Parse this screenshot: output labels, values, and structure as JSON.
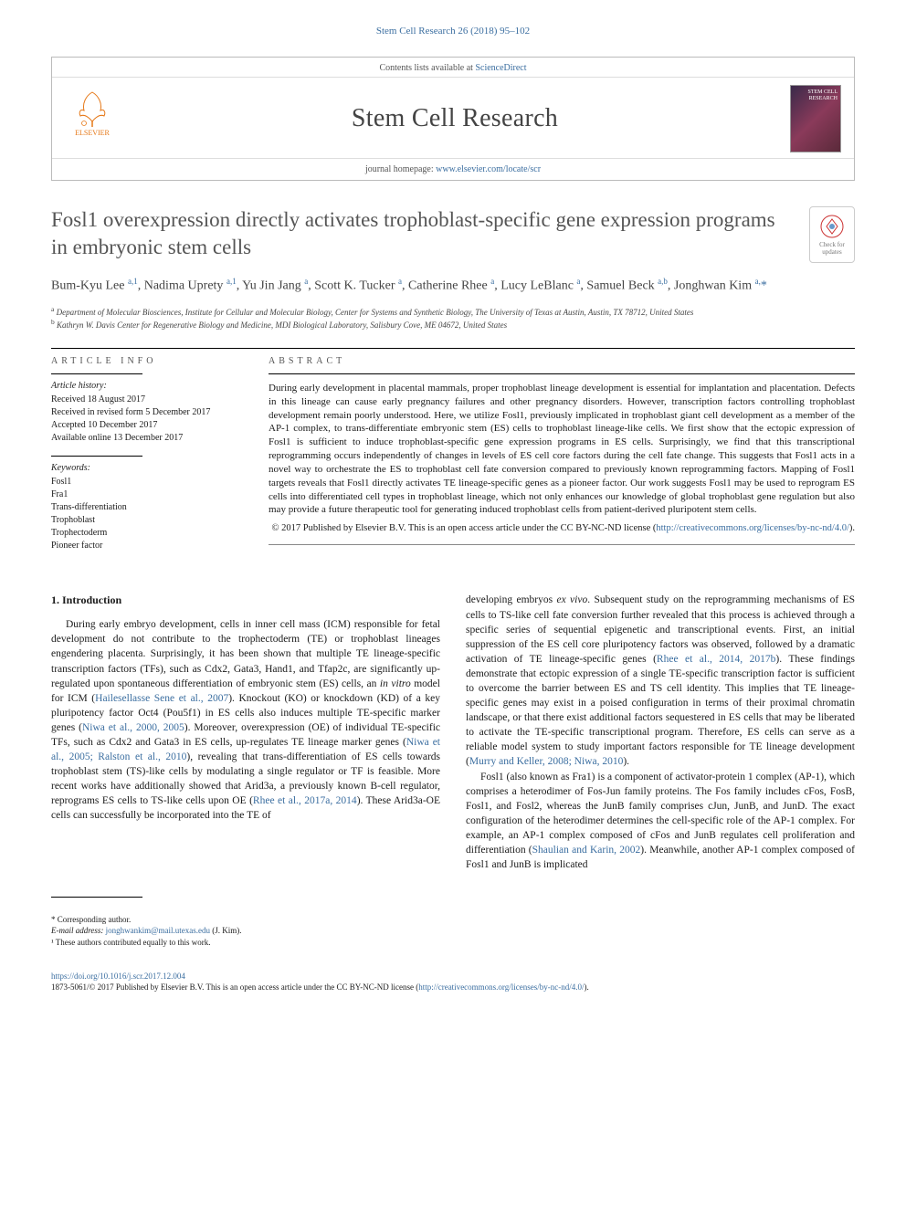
{
  "running_head": "Stem Cell Research 26 (2018) 95–102",
  "masthead": {
    "contents_line_pre": "Contents lists available at ",
    "contents_link": "ScienceDirect",
    "journal_title": "Stem Cell Research",
    "cover_text": "STEM\nCELL\nRESEARCH",
    "homepage_pre": "journal homepage: ",
    "homepage_url": "www.elsevier.com/locate/scr",
    "elsevier": "ELSEVIER"
  },
  "article": {
    "title": "Fosl1 overexpression directly activates trophoblast-specific gene expression programs in embryonic stem cells",
    "updates_label": "Check for updates"
  },
  "authors_html": "Bum-Kyu Lee <sup><a>a</a>,1</sup>, Nadima Uprety <sup><a>a</a>,1</sup>, Yu Jin Jang <sup><a>a</a></sup>, Scott K. Tucker <sup><a>a</a></sup>, Catherine Rhee <sup><a>a</a></sup>, Lucy LeBlanc <sup><a>a</a></sup>, Samuel Beck <sup><a>a</a>,<a>b</a></sup>, Jonghwan Kim <sup><a>a</a>,</sup><span class='star'>*</span>",
  "affiliations": [
    {
      "sup": "a",
      "text": "Department of Molecular Biosciences, Institute for Cellular and Molecular Biology, Center for Systems and Synthetic Biology, The University of Texas at Austin, Austin, TX 78712, United States"
    },
    {
      "sup": "b",
      "text": "Kathryn W. Davis Center for Regenerative Biology and Medicine, MDI Biological Laboratory, Salisbury Cove, ME 04672, United States"
    }
  ],
  "info": {
    "heading": "ARTICLE INFO",
    "history_label": "Article history:",
    "history": [
      "Received 18 August 2017",
      "Received in revised form 5 December 2017",
      "Accepted 10 December 2017",
      "Available online 13 December 2017"
    ],
    "keywords_label": "Keywords:",
    "keywords": [
      "Fosl1",
      "Fra1",
      "Trans-differentiation",
      "Trophoblast",
      "Trophectoderm",
      "Pioneer factor"
    ]
  },
  "abstract": {
    "heading": "ABSTRACT",
    "text": "During early development in placental mammals, proper trophoblast lineage development is essential for implantation and placentation. Defects in this lineage can cause early pregnancy failures and other pregnancy disorders. However, transcription factors controlling trophoblast development remain poorly understood. Here, we utilize Fosl1, previously implicated in trophoblast giant cell development as a member of the AP-1 complex, to trans-differentiate embryonic stem (ES) cells to trophoblast lineage-like cells. We first show that the ectopic expression of Fosl1 is sufficient to induce trophoblast-specific gene expression programs in ES cells. Surprisingly, we find that this transcriptional reprogramming occurs independently of changes in levels of ES cell core factors during the cell fate change. This suggests that Fosl1 acts in a novel way to orchestrate the ES to trophoblast cell fate conversion compared to previously known reprogramming factors. Mapping of Fosl1 targets reveals that Fosl1 directly activates TE lineage-specific genes as a pioneer factor. Our work suggests Fosl1 may be used to reprogram ES cells into differentiated cell types in trophoblast lineage, which not only enhances our knowledge of global trophoblast gene regulation but also may provide a future therapeutic tool for generating induced trophoblast cells from patient-derived pluripotent stem cells.",
    "copyright": "© 2017 Published by Elsevier B.V. This is an open access article under the CC BY-NC-ND license (",
    "license_url": "http://creativecommons.org/licenses/by-nc-nd/4.0/",
    "close": ")."
  },
  "sections": {
    "intro_heading": "1. Introduction",
    "col1_p1": "During early embryo development, cells in inner cell mass (ICM) responsible for fetal development do not contribute to the trophectoderm (TE) or trophoblast lineages engendering placenta. Surprisingly, it has been shown that multiple TE lineage-specific transcription factors (TFs), such as Cdx2, Gata3, Hand1, and Tfap2c, are significantly up-regulated upon spontaneous differentiation of embryonic stem (ES) cells, an in vitro model for ICM (Hailesellasse Sene et al., 2007). Knockout (KO) or knockdown (KD) of a key pluripotency factor Oct4 (Pou5f1) in ES cells also induces multiple TE-specific marker genes (Niwa et al., 2000, 2005). Moreover, overexpression (OE) of individual TE-specific TFs, such as Cdx2 and Gata3 in ES cells, up-regulates TE lineage marker genes (Niwa et al., 2005; Ralston et al., 2010), revealing that trans-differentiation of ES cells towards trophoblast stem (TS)-like cells by modulating a single regulator or TF is feasible. More recent works have additionally showed that Arid3a, a previously known B-cell regulator, reprograms ES cells to TS-like cells upon OE (Rhee et al., 2017a, 2014). These Arid3a-OE cells can successfully be incorporated into the TE of",
    "col2_p1": "developing embryos ex vivo. Subsequent study on the reprogramming mechanisms of ES cells to TS-like cell fate conversion further revealed that this process is achieved through a specific series of sequential epigenetic and transcriptional events. First, an initial suppression of the ES cell core pluripotency factors was observed, followed by a dramatic activation of TE lineage-specific genes (Rhee et al., 2014, 2017b). These findings demonstrate that ectopic expression of a single TE-specific transcription factor is sufficient to overcome the barrier between ES and TS cell identity. This implies that TE lineage-specific genes may exist in a poised configuration in terms of their proximal chromatin landscape, or that there exist additional factors sequestered in ES cells that may be liberated to activate the TE-specific transcriptional program. Therefore, ES cells can serve as a reliable model system to study important factors responsible for TE lineage development (Murry and Keller, 2008; Niwa, 2010).",
    "col2_p2": "Fosl1 (also known as Fra1) is a component of activator-protein 1 complex (AP-1), which comprises a heterodimer of Fos-Jun family proteins. The Fos family includes cFos, FosB, Fosl1, and Fosl2, whereas the JunB family comprises cJun, JunB, and JunD. The exact configuration of the heterodimer determines the cell-specific role of the AP-1 complex. For example, an AP-1 complex composed of cFos and JunB regulates cell proliferation and differentiation (Shaulian and Karin, 2002). Meanwhile, another AP-1 complex composed of Fosl1 and JunB is implicated"
  },
  "footnotes": {
    "corr": "* Corresponding author.",
    "email_label": "E-mail address:",
    "email": "jonghwankim@mail.utexas.edu",
    "email_who": "(J. Kim).",
    "equal": "¹ These authors contributed equally to this work."
  },
  "footer": {
    "doi": "https://doi.org/10.1016/j.scr.2017.12.004",
    "line2_pre": "1873-5061/© 2017 Published by Elsevier B.V. This is an open access article under the CC BY-NC-ND license (",
    "line2_url": "http://creativecommons.org/licenses/by-nc-nd/4.0/",
    "line2_post": ")."
  },
  "colors": {
    "link": "#3b6ea0",
    "elsevier_orange": "#e67817",
    "text": "#1a1a1a",
    "gray": "#555555"
  }
}
